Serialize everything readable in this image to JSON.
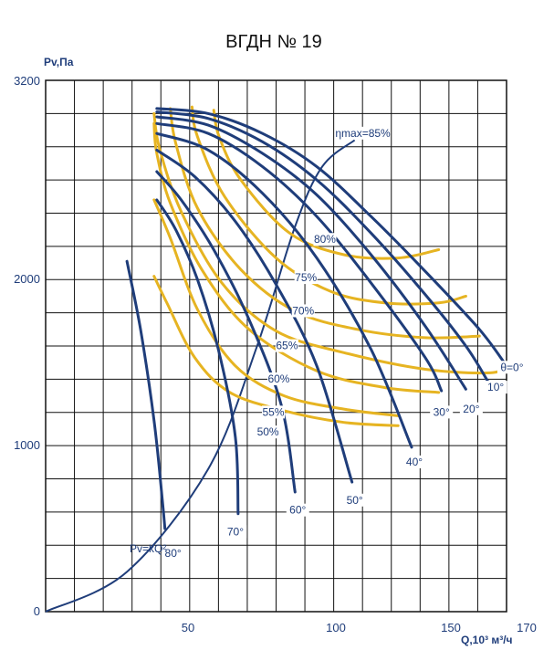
{
  "chart_data": {
    "type": "line",
    "title": "ВГДН № 19",
    "ylabel": "Pv,Па",
    "xlabel": "Q,10³ м³/ч",
    "xlim": [
      0,
      170
    ],
    "ylim": [
      0,
      3200
    ],
    "x_ticks": [
      "50",
      "100",
      "150",
      "170"
    ],
    "y_ticks": [
      "0",
      "1000",
      "2000",
      "3200"
    ],
    "grid": true,
    "blade_angle_curves": [
      {
        "name": "θ=0°",
        "points": [
          [
            41,
            3030
          ],
          [
            60,
            3000
          ],
          [
            80,
            2880
          ],
          [
            100,
            2680
          ],
          [
            120,
            2380
          ],
          [
            140,
            2050
          ],
          [
            160,
            1700
          ],
          [
            170,
            1480
          ]
        ]
      },
      {
        "name": "10°",
        "points": [
          [
            41,
            3010
          ],
          [
            60,
            2970
          ],
          [
            80,
            2830
          ],
          [
            100,
            2600
          ],
          [
            120,
            2280
          ],
          [
            140,
            1910
          ],
          [
            155,
            1600
          ],
          [
            163,
            1390
          ]
        ]
      },
      {
        "name": "20°",
        "points": [
          [
            41,
            2980
          ],
          [
            60,
            2930
          ],
          [
            80,
            2760
          ],
          [
            100,
            2510
          ],
          [
            120,
            2150
          ],
          [
            140,
            1720
          ],
          [
            155,
            1340
          ]
        ]
      },
      {
        "name": "30°",
        "points": [
          [
            41,
            2940
          ],
          [
            60,
            2880
          ],
          [
            80,
            2680
          ],
          [
            100,
            2380
          ],
          [
            120,
            1980
          ],
          [
            140,
            1530
          ],
          [
            146,
            1330
          ]
        ]
      },
      {
        "name": "40°",
        "points": [
          [
            41,
            2880
          ],
          [
            60,
            2780
          ],
          [
            80,
            2520
          ],
          [
            100,
            2130
          ],
          [
            120,
            1580
          ],
          [
            135,
            990
          ]
        ]
      },
      {
        "name": "50°",
        "points": [
          [
            41,
            2780
          ],
          [
            55,
            2620
          ],
          [
            70,
            2350
          ],
          [
            85,
            1970
          ],
          [
            100,
            1480
          ],
          [
            113,
            780
          ]
        ]
      },
      {
        "name": "60°",
        "points": [
          [
            41,
            2650
          ],
          [
            50,
            2480
          ],
          [
            62,
            2180
          ],
          [
            75,
            1760
          ],
          [
            87,
            1240
          ],
          [
            92,
            720
          ]
        ]
      },
      {
        "name": "70°",
        "points": [
          [
            41,
            2480
          ],
          [
            48,
            2300
          ],
          [
            56,
            2000
          ],
          [
            64,
            1560
          ],
          [
            70,
            1050
          ],
          [
            71,
            590
          ]
        ]
      },
      {
        "name": "80°",
        "points": [
          [
            30,
            2110
          ],
          [
            35,
            1700
          ],
          [
            40,
            1150
          ],
          [
            43,
            680
          ],
          [
            44,
            500
          ]
        ]
      }
    ],
    "efficiency_curves": [
      {
        "name": "ηmax=85%",
        "points": [
          [
            0,
            0
          ],
          [
            30,
            240
          ],
          [
            60,
            860
          ],
          [
            78,
            1600
          ],
          [
            92,
            2320
          ],
          [
            102,
            2680
          ],
          [
            114,
            2840
          ]
        ]
      },
      {
        "name": "80%",
        "points": [
          [
            62,
            3020
          ],
          [
            64,
            2860
          ],
          [
            72,
            2600
          ],
          [
            90,
            2280
          ],
          [
            110,
            2150
          ],
          [
            130,
            2130
          ],
          [
            145,
            2180
          ]
        ]
      },
      {
        "name": "75%",
        "points": [
          [
            54,
            3040
          ],
          [
            56,
            2860
          ],
          [
            66,
            2500
          ],
          [
            85,
            2130
          ],
          [
            105,
            1930
          ],
          [
            125,
            1860
          ],
          [
            145,
            1860
          ],
          [
            155,
            1900
          ]
        ]
      },
      {
        "name": "70%",
        "points": [
          [
            46,
            3030
          ],
          [
            48,
            2820
          ],
          [
            56,
            2430
          ],
          [
            72,
            2060
          ],
          [
            92,
            1810
          ],
          [
            115,
            1700
          ],
          [
            140,
            1650
          ],
          [
            160,
            1660
          ]
        ]
      },
      {
        "name": "65%",
        "points": [
          [
            40,
            3000
          ],
          [
            42,
            2790
          ],
          [
            50,
            2410
          ],
          [
            65,
            1980
          ],
          [
            85,
            1690
          ],
          [
            110,
            1560
          ],
          [
            140,
            1460
          ],
          [
            165,
            1440
          ],
          [
            170,
            1500
          ]
        ]
      },
      {
        "name": "60%",
        "points": [
          [
            40,
            2940
          ],
          [
            41,
            2760
          ],
          [
            46,
            2460
          ],
          [
            58,
            2050
          ],
          [
            75,
            1700
          ],
          [
            100,
            1450
          ],
          [
            125,
            1350
          ],
          [
            145,
            1320
          ]
        ]
      },
      {
        "name": "55%",
        "points": [
          [
            40,
            2480
          ],
          [
            46,
            2250
          ],
          [
            56,
            1820
          ],
          [
            70,
            1480
          ],
          [
            88,
            1300
          ],
          [
            110,
            1220
          ],
          [
            130,
            1180
          ]
        ]
      },
      {
        "name": "50%",
        "points": [
          [
            40,
            2020
          ],
          [
            45,
            1850
          ],
          [
            55,
            1530
          ],
          [
            68,
            1320
          ],
          [
            88,
            1210
          ],
          [
            110,
            1140
          ],
          [
            130,
            1120
          ]
        ]
      }
    ],
    "system_curve_label": "Pv=kQ²",
    "angle_labels": [
      {
        "text": "θ=0°",
        "x": 172,
        "y": 1450
      },
      {
        "text": "10°",
        "x": 166,
        "y": 1330
      },
      {
        "text": "20°",
        "x": 157,
        "y": 1200
      },
      {
        "text": "30°",
        "x": 146,
        "y": 1180
      },
      {
        "text": "40°",
        "x": 136,
        "y": 880
      },
      {
        "text": "50°",
        "x": 114,
        "y": 650
      },
      {
        "text": "60°",
        "x": 93,
        "y": 590
      },
      {
        "text": "70°",
        "x": 70,
        "y": 460
      },
      {
        "text": "80°",
        "x": 47,
        "y": 330
      }
    ],
    "eff_labels": [
      {
        "text": "ηmax=85%",
        "x": 117,
        "y": 2860
      },
      {
        "text": "80%",
        "x": 103,
        "y": 2220
      },
      {
        "text": "75%",
        "x": 96,
        "y": 1990
      },
      {
        "text": "70%",
        "x": 95,
        "y": 1790
      },
      {
        "text": "65%",
        "x": 89,
        "y": 1580
      },
      {
        "text": "60%",
        "x": 86,
        "y": 1380
      },
      {
        "text": "55%",
        "x": 84,
        "y": 1180
      },
      {
        "text": "50%",
        "x": 82,
        "y": 1060
      }
    ]
  },
  "colors": {
    "blue": "#1f3d7a",
    "yellow": "#e6b422",
    "grid": "#111111"
  }
}
